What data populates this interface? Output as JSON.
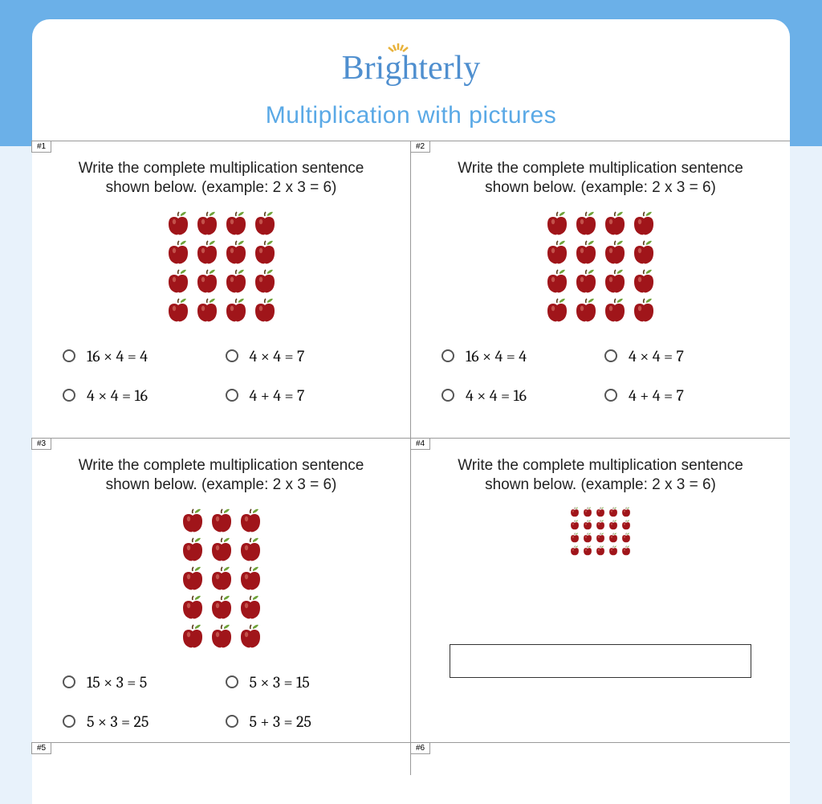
{
  "brand": "Brighterly",
  "brand_color": "#4f8fcf",
  "subtitle": "Multiplication with pictures",
  "subtitle_color": "#5aa9e6",
  "apple_fill": "#a0151a",
  "apple_leaf": "#6fa23a",
  "background_band": "#6bb0e8",
  "page_bg": "#e8f2fb",
  "questions": [
    {
      "num": "#1",
      "prompt": "Write the complete multiplication sentence shown below. (example: 2 x 3 = 6)",
      "rows": 4,
      "cols": 4,
      "size": "large",
      "type": "mc",
      "options": [
        "16 × 4 = 4",
        "4 × 4 = 7",
        "4 × 4 = 16",
        "4 + 4 = 7"
      ]
    },
    {
      "num": "#2",
      "prompt": "Write the complete multiplication sentence shown below. (example: 2 x 3 = 6)",
      "rows": 4,
      "cols": 4,
      "size": "large",
      "type": "mc",
      "options": [
        "16 × 4 = 4",
        "4 × 4 = 7",
        "4 × 4 = 16",
        "4 + 4 = 7"
      ]
    },
    {
      "num": "#3",
      "prompt": "Write the complete multiplication sentence shown below. (example: 2 x 3 = 6)",
      "rows": 5,
      "cols": 3,
      "size": "large",
      "type": "mc",
      "options": [
        "15 × 3 = 5",
        "5 × 3 = 15",
        "5 × 3 = 25",
        "5 + 3 = 25"
      ]
    },
    {
      "num": "#4",
      "prompt": "Write the complete multiplication sentence shown below. (example: 2 x 3 = 6)",
      "rows": 4,
      "cols": 5,
      "size": "small",
      "type": "free",
      "answer": ""
    },
    {
      "num": "#5",
      "type": "stub"
    },
    {
      "num": "#6",
      "type": "stub"
    }
  ]
}
